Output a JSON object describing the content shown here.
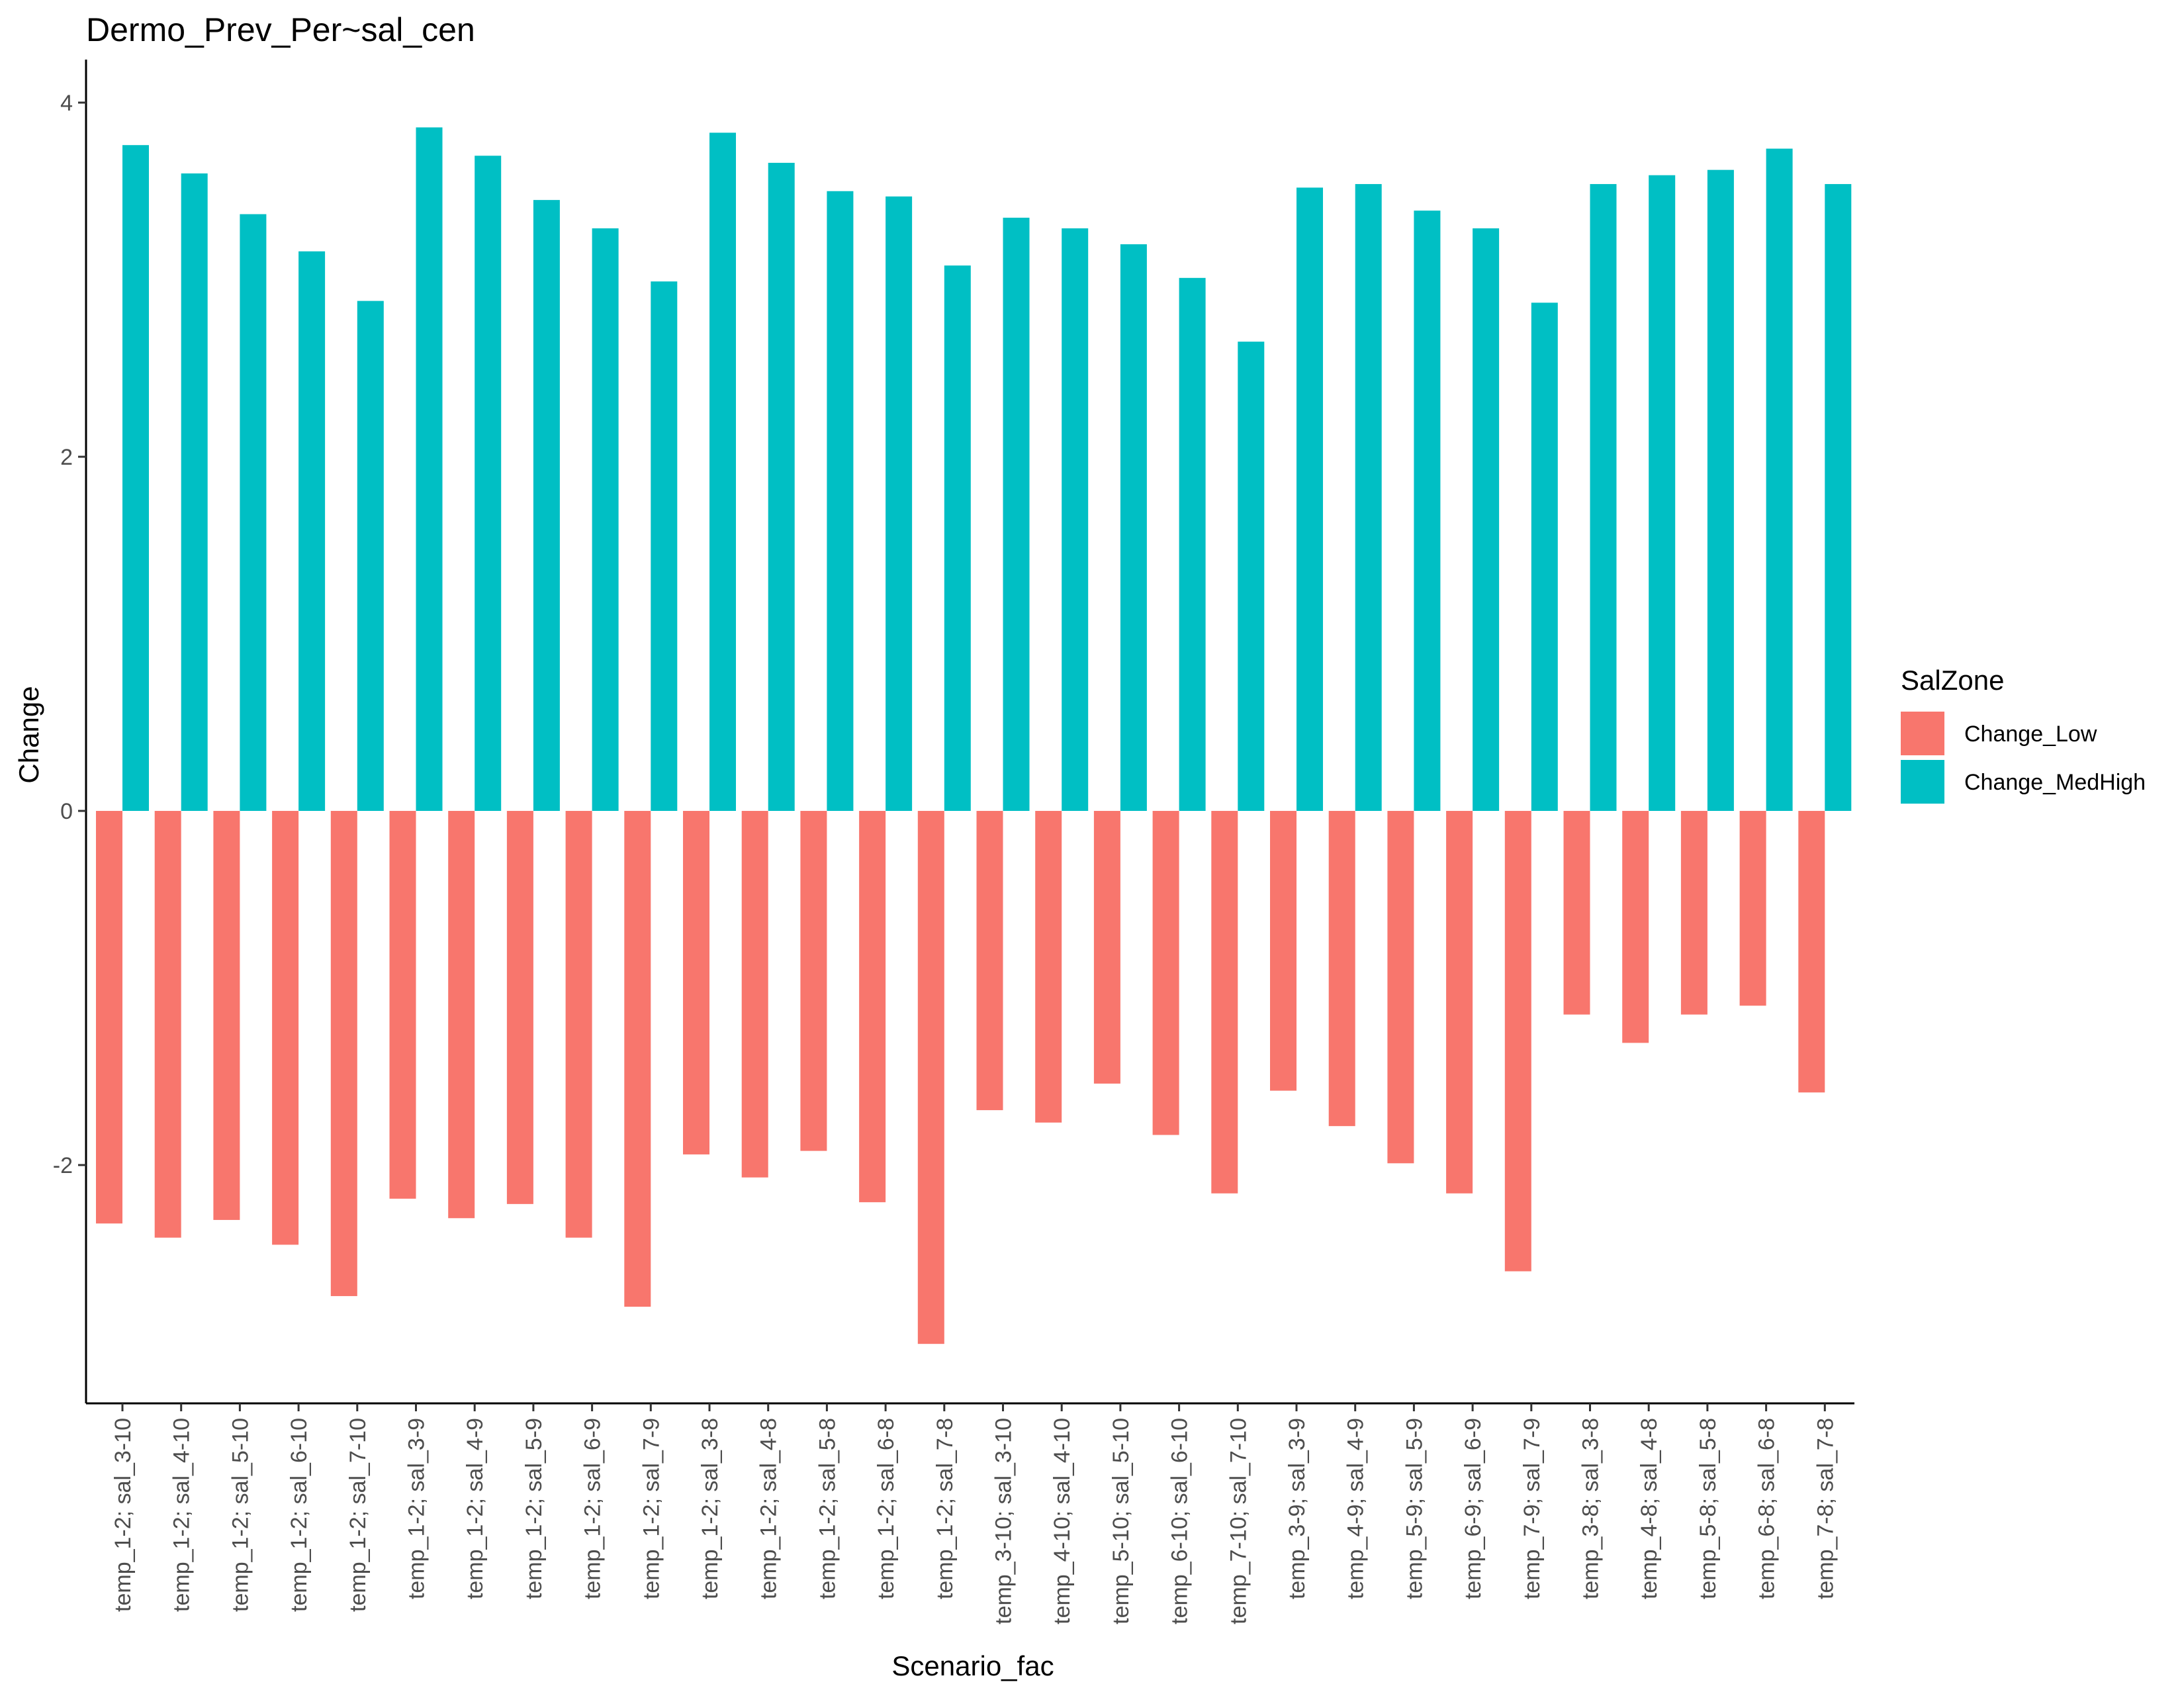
{
  "chart_data": {
    "type": "bar",
    "title": "Dermo_Prev_Per~sal_cen",
    "xlabel": "Scenario_fac",
    "ylabel": "Change",
    "ylim": [
      -3.4,
      4.05
    ],
    "yticks": [
      -2,
      0,
      2,
      4
    ],
    "grid": false,
    "legend": {
      "title": "SalZone",
      "position": "right"
    },
    "categories": [
      "temp_1-2; sal_3-10",
      "temp_1-2; sal_4-10",
      "temp_1-2; sal_5-10",
      "temp_1-2; sal_6-10",
      "temp_1-2; sal_7-10",
      "temp_1-2; sal_3-9",
      "temp_1-2; sal_4-9",
      "temp_1-2; sal_5-9",
      "temp_1-2; sal_6-9",
      "temp_1-2; sal_7-9",
      "temp_1-2; sal_3-8",
      "temp_1-2; sal_4-8",
      "temp_1-2; sal_5-8",
      "temp_1-2; sal_6-8",
      "temp_1-2; sal_7-8",
      "temp_3-10; sal_3-10",
      "temp_4-10; sal_4-10",
      "temp_5-10; sal_5-10",
      "temp_6-10; sal_6-10",
      "temp_7-10; sal_7-10",
      "temp_3-9; sal_3-9",
      "temp_4-9; sal_4-9",
      "temp_5-9; sal_5-9",
      "temp_6-9; sal_6-9",
      "temp_7-9; sal_7-9",
      "temp_3-8; sal_3-8",
      "temp_4-8; sal_4-8",
      "temp_5-8; sal_5-8",
      "temp_6-8; sal_6-8",
      "temp_7-8; sal_7-8"
    ],
    "series": [
      {
        "name": "Change_Low",
        "color": "#F8766D",
        "values": [
          -2.33,
          -2.41,
          -2.31,
          -2.45,
          -2.74,
          -2.19,
          -2.3,
          -2.22,
          -2.41,
          -2.8,
          -1.94,
          -2.07,
          -1.92,
          -2.21,
          -3.01,
          -1.69,
          -1.76,
          -1.54,
          -1.83,
          -2.16,
          -1.58,
          -1.78,
          -1.99,
          -2.16,
          -2.6,
          -1.15,
          -1.31,
          -1.15,
          -1.1,
          -1.59
        ]
      },
      {
        "name": "Change_MedHigh",
        "color": "#00BFC4",
        "values": [
          3.76,
          3.6,
          3.37,
          3.16,
          2.88,
          3.86,
          3.7,
          3.45,
          3.29,
          2.99,
          3.83,
          3.66,
          3.5,
          3.47,
          3.08,
          3.35,
          3.29,
          3.2,
          3.01,
          2.65,
          3.52,
          3.54,
          3.39,
          3.29,
          2.87,
          3.54,
          3.59,
          3.62,
          3.74,
          3.54
        ]
      }
    ]
  }
}
